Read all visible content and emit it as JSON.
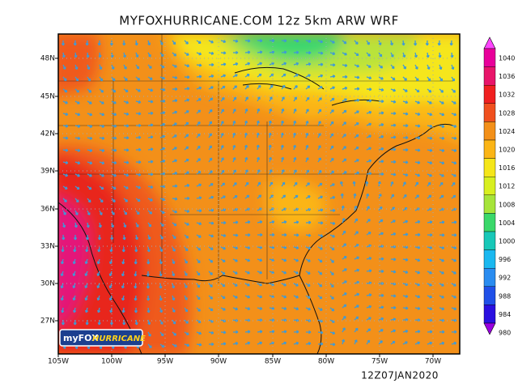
{
  "header": {
    "title": "MYFOXHURRICANE.COM 12z 5km ARW WRF"
  },
  "map": {
    "lat_labels": [
      "48N",
      "45N",
      "42N",
      "39N",
      "36N",
      "33N",
      "30N",
      "27N"
    ],
    "lon_labels": [
      "105W",
      "100W",
      "95W",
      "90W",
      "85W",
      "80W",
      "75W",
      "70W"
    ]
  },
  "colorbar": {
    "labels": [
      "1040",
      "1036",
      "1032",
      "1028",
      "1024",
      "1020",
      "1016",
      "1012",
      "1008",
      "1004",
      "1000",
      "996",
      "992",
      "988",
      "984",
      "980"
    ]
  },
  "logo": {
    "prefix": "myFOX",
    "suffix": "HURRICANE"
  },
  "footer": {
    "valid_time": "12Z07JAN2020"
  }
}
